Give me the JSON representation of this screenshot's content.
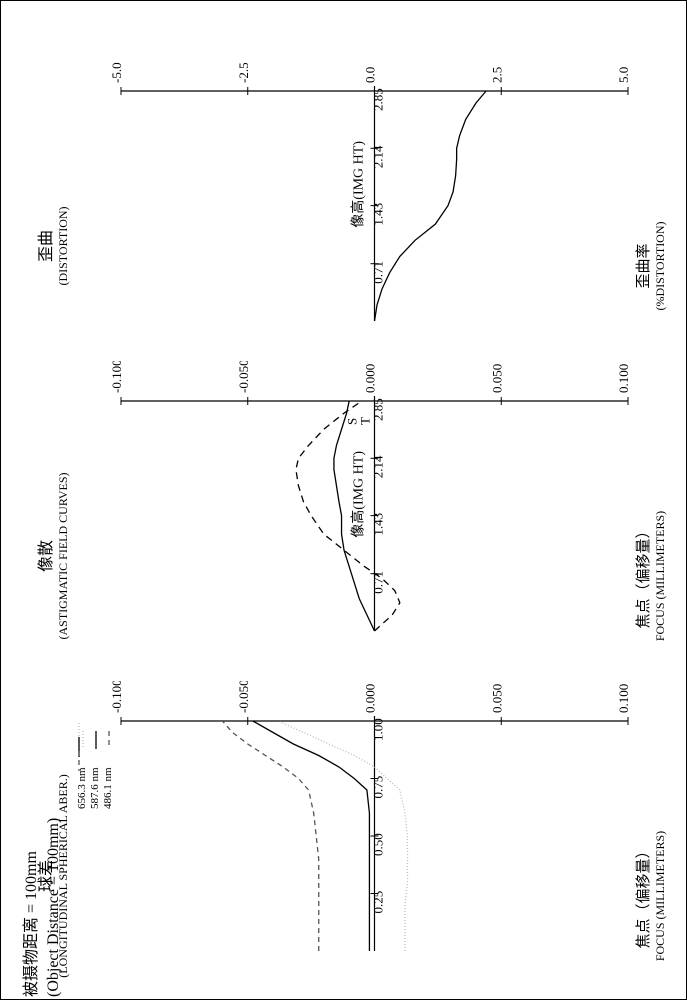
{
  "header": {
    "line_cn": "被摄物距离 = 100mm",
    "line_en": "(Object Distance = 100mm)"
  },
  "common": {
    "xaxis_label_cn": "焦点（偏移量）",
    "xaxis_label_en": "FOCUS (MILLIMETERS)",
    "background_color": "#ffffff",
    "axis_color": "#000000",
    "font_family": "SimSun / Times",
    "tick_fontsize": 13,
    "title_fontsize": 16
  },
  "chart1_spherical": {
    "type": "line",
    "title_cn": "球差",
    "title_en": "(LONGITUDINAL SPHERICAL ABER.)",
    "legend": [
      {
        "label": "656.3 nm",
        "color": "#bbbbbb",
        "dash": "1,2",
        "width": 1.3
      },
      {
        "label": "587.6 nm",
        "color": "#000000",
        "dash": "",
        "width": 1.3
      },
      {
        "label": "486.1 nm",
        "color": "#555555",
        "dash": "5,4",
        "width": 1.3
      }
    ],
    "xlim": [
      -0.1,
      0.1
    ],
    "xticks": [
      -0.1,
      -0.05,
      0.0,
      0.05,
      0.1
    ],
    "ylim": [
      0,
      1.0
    ],
    "yticks": [
      0.25,
      0.5,
      0.75,
      1.0
    ],
    "series": [
      {
        "name": "656.3nm",
        "xy": [
          [
            0.012,
            0.0
          ],
          [
            0.012,
            0.1
          ],
          [
            0.012,
            0.2
          ],
          [
            0.013,
            0.3
          ],
          [
            0.013,
            0.4
          ],
          [
            0.013,
            0.5
          ],
          [
            0.012,
            0.6
          ],
          [
            0.01,
            0.7
          ],
          [
            0.005,
            0.75
          ],
          [
            0.0,
            0.8
          ],
          [
            -0.008,
            0.85
          ],
          [
            -0.018,
            0.9
          ],
          [
            -0.028,
            0.95
          ],
          [
            -0.038,
            1.0
          ]
        ]
      },
      {
        "name": "587.6nm",
        "xy": [
          [
            -0.002,
            0.0
          ],
          [
            -0.002,
            0.1
          ],
          [
            -0.002,
            0.2
          ],
          [
            -0.002,
            0.3
          ],
          [
            -0.002,
            0.4
          ],
          [
            -0.002,
            0.5
          ],
          [
            -0.002,
            0.6
          ],
          [
            -0.003,
            0.7
          ],
          [
            -0.008,
            0.75
          ],
          [
            -0.014,
            0.8
          ],
          [
            -0.022,
            0.85
          ],
          [
            -0.032,
            0.9
          ],
          [
            -0.04,
            0.95
          ],
          [
            -0.048,
            1.0
          ]
        ]
      },
      {
        "name": "486.1nm",
        "xy": [
          [
            -0.022,
            0.0
          ],
          [
            -0.022,
            0.1
          ],
          [
            -0.022,
            0.2
          ],
          [
            -0.022,
            0.3
          ],
          [
            -0.022,
            0.4
          ],
          [
            -0.023,
            0.5
          ],
          [
            -0.024,
            0.6
          ],
          [
            -0.026,
            0.7
          ],
          [
            -0.03,
            0.75
          ],
          [
            -0.036,
            0.8
          ],
          [
            -0.043,
            0.85
          ],
          [
            -0.05,
            0.9
          ],
          [
            -0.056,
            0.95
          ],
          [
            -0.06,
            1.0
          ]
        ]
      }
    ]
  },
  "chart2_astigmatic": {
    "type": "line",
    "title_cn": "像散",
    "title_en": "(ASTIGMATIC FIELD CURVES)",
    "yaxis_label": "像高(IMG HT)",
    "series_labels": {
      "s": "S",
      "t": "T"
    },
    "xlim": [
      -0.1,
      0.1
    ],
    "xticks": [
      -0.1,
      -0.05,
      0.0,
      0.05,
      0.1
    ],
    "ylim": [
      0,
      2.85
    ],
    "yticks": [
      0.71,
      1.43,
      2.14,
      2.85
    ],
    "series": [
      {
        "name": "S",
        "color": "#000000",
        "dash": "",
        "width": 1.3,
        "xy": [
          [
            0.0,
            0.0
          ],
          [
            -0.003,
            0.2
          ],
          [
            -0.006,
            0.4
          ],
          [
            -0.008,
            0.6
          ],
          [
            -0.01,
            0.8
          ],
          [
            -0.012,
            1.0
          ],
          [
            -0.013,
            1.2
          ],
          [
            -0.013,
            1.43
          ],
          [
            -0.014,
            1.6
          ],
          [
            -0.015,
            1.8
          ],
          [
            -0.016,
            2.0
          ],
          [
            -0.016,
            2.14
          ],
          [
            -0.015,
            2.3
          ],
          [
            -0.013,
            2.5
          ],
          [
            -0.011,
            2.7
          ],
          [
            -0.01,
            2.85
          ]
        ]
      },
      {
        "name": "T",
        "color": "#000000",
        "dash": "7,5",
        "width": 1.3,
        "xy": [
          [
            0.0,
            0.0
          ],
          [
            0.007,
            0.2
          ],
          [
            0.01,
            0.35
          ],
          [
            0.008,
            0.5
          ],
          [
            0.003,
            0.65
          ],
          [
            -0.004,
            0.8
          ],
          [
            -0.012,
            1.0
          ],
          [
            -0.02,
            1.2
          ],
          [
            -0.025,
            1.43
          ],
          [
            -0.028,
            1.6
          ],
          [
            -0.03,
            1.8
          ],
          [
            -0.031,
            2.0
          ],
          [
            -0.03,
            2.14
          ],
          [
            -0.026,
            2.3
          ],
          [
            -0.02,
            2.5
          ],
          [
            -0.012,
            2.7
          ],
          [
            -0.005,
            2.85
          ]
        ]
      }
    ]
  },
  "chart3_distortion": {
    "type": "line",
    "title_cn": "歪曲",
    "title_en": "(DISTORTION)",
    "yaxis_label": "像高(IMG HT)",
    "xaxis_label_cn": "歪曲率",
    "xaxis_label_en": "(%DISTORTION)",
    "xlim": [
      -5.0,
      5.0
    ],
    "xticks": [
      -5.0,
      -2.5,
      0.0,
      2.5,
      5.0
    ],
    "ylim": [
      0,
      2.85
    ],
    "yticks": [
      0.71,
      1.43,
      2.14,
      2.85
    ],
    "series": [
      {
        "name": "distortion",
        "color": "#000000",
        "dash": "",
        "width": 1.3,
        "xy": [
          [
            0.0,
            0.0
          ],
          [
            0.05,
            0.2
          ],
          [
            0.15,
            0.4
          ],
          [
            0.3,
            0.6
          ],
          [
            0.5,
            0.8
          ],
          [
            0.8,
            1.0
          ],
          [
            1.2,
            1.2
          ],
          [
            1.45,
            1.43
          ],
          [
            1.55,
            1.6
          ],
          [
            1.6,
            1.8
          ],
          [
            1.62,
            2.0
          ],
          [
            1.62,
            2.14
          ],
          [
            1.68,
            2.3
          ],
          [
            1.8,
            2.5
          ],
          [
            2.0,
            2.7
          ],
          [
            2.2,
            2.85
          ]
        ]
      }
    ]
  }
}
